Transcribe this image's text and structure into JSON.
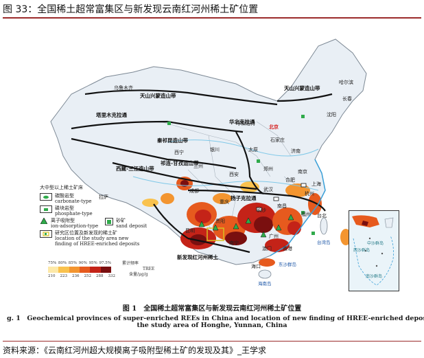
{
  "figure_title": "图 33：全国稀土超常富集区与新发现云南红河州稀土矿位置",
  "map": {
    "belts": [
      "天山兴蒙造山带",
      "塔里木克拉通",
      "天山兴蒙造山带",
      "华北克拉通",
      "秦祁昆造山带",
      "祁连-甘孜造山带",
      "西藏-三江造山带",
      "扬子克拉通"
    ],
    "places": [
      "乌鲁木齐",
      "哈尔滨",
      "长春",
      "沈阳",
      "呼和浩特",
      "北京",
      "太原",
      "石家庄",
      "济南",
      "郑州",
      "西安",
      "兰州",
      "西宁",
      "拉萨",
      "成都",
      "重庆",
      "武汉",
      "合肥",
      "南京",
      "上海",
      "杭州",
      "长沙",
      "南昌",
      "福州",
      "贵阳",
      "昆明",
      "南宁",
      "广州",
      "台北",
      "香港",
      "澳门",
      "海口",
      "银川"
    ],
    "capital": "北京",
    "seas": [
      "台湾岛",
      "海南岛",
      "东沙群岛",
      "中沙群岛",
      "西沙群岛",
      "南沙群岛"
    ],
    "new_area_label": "新发现红河州稀土",
    "colors": {
      "land": "#e8eef4",
      "belt_line": "#111111",
      "ree_low": "#f5c242",
      "ree_high": "#7a0f0f",
      "water": "#7fc8e8"
    }
  },
  "legend": {
    "title": "大中型以上稀土矿床",
    "items": [
      {
        "cn": "碳酸岩型",
        "en": "carbonate-type",
        "icon": "square-ellipse-icon"
      },
      {
        "cn": "磷块岩型",
        "en": "phosphate-type",
        "icon": "square-ellipse-icon"
      },
      {
        "cn": "离子吸附型",
        "en": "ion-adsorption-type",
        "icon": "triangle-icon"
      },
      {
        "cn": "砂矿",
        "en": "sand deposit",
        "icon": "green-square-icon"
      },
      {
        "cn": "研究区位置及新发现的稀土矿",
        "en": "location of the study area new finding of HREE-enriched deposits",
        "icon": "study-area-icon"
      }
    ]
  },
  "color_ramp": {
    "percentiles": [
      "75%",
      "80%",
      "85%",
      "90%",
      "95%",
      "97.5%"
    ],
    "values": [
      "210",
      "223",
      "236",
      "252",
      "288",
      "332"
    ],
    "colors": [
      "#fde9a8",
      "#f9c24e",
      "#f39530",
      "#e65a1e",
      "#c42318",
      "#7a0f0f"
    ],
    "label_cn": "累计频率",
    "label_en": "TREE",
    "unit": "含量/μg/g"
  },
  "caption": {
    "cn": "图 1　全国稀土超常富集区与新发现云南红河州稀土矿位置",
    "en_line1": "g. 1　Geochemical provinces of super-enriched REEs in China and location of new finding of HREE-enriched deposit",
    "en_line2": "the study area of Honghe, Yunnan, China"
  },
  "source": "资料来源：《云南红河州超大规模离子吸附型稀土矿的发现及其》_王学求"
}
